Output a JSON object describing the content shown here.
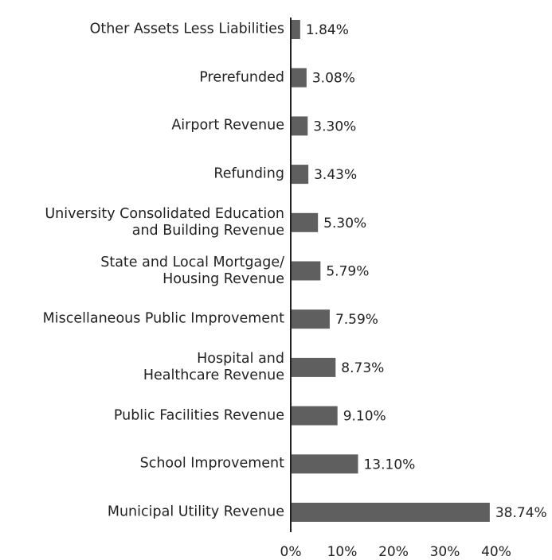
{
  "chart_data": {
    "type": "bar",
    "orientation": "horizontal",
    "categories": [
      "Other Assets Less Liabilities",
      "Prerefunded",
      "Airport Revenue",
      "Refunding",
      "University Consolidated Education\nand Building Revenue",
      "State and Local Mortgage/\nHousing Revenue",
      "Miscellaneous Public Improvement",
      "Hospital and\nHealthcare Revenue",
      "Public Facilities Revenue",
      "School Improvement",
      "Municipal Utility Revenue"
    ],
    "values": [
      1.84,
      3.08,
      3.3,
      3.43,
      5.3,
      5.79,
      7.59,
      8.73,
      9.1,
      13.1,
      38.74
    ],
    "value_labels": [
      "1.84%",
      "3.08%",
      "3.30%",
      "3.43%",
      "5.30%",
      "5.79%",
      "7.59%",
      "8.73%",
      "9.10%",
      "13.10%",
      "38.74%"
    ],
    "color": "#5f5f5f",
    "xlim": [
      0,
      40
    ],
    "xticks": [
      {
        "value": 0,
        "label": "0%"
      },
      {
        "value": 10,
        "label": "10%"
      },
      {
        "value": 20,
        "label": "20%"
      },
      {
        "value": 30,
        "label": "30%"
      },
      {
        "value": 40,
        "label": "40%"
      }
    ]
  }
}
